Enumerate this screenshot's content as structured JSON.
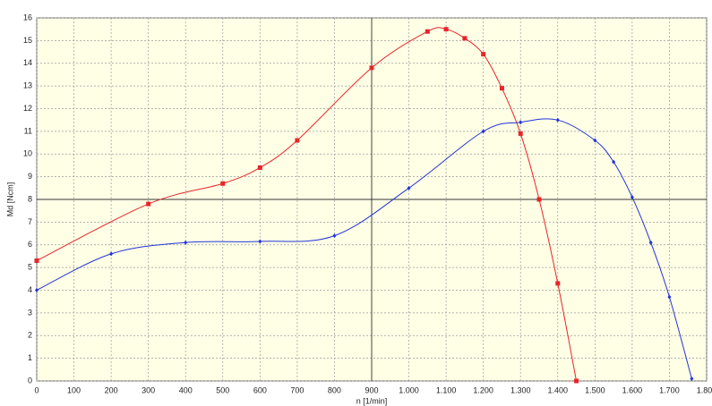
{
  "chart_data": {
    "type": "line",
    "xlabel": "n [1/min]",
    "ylabel": "Md [Ncm]",
    "xlim": [
      0,
      1800
    ],
    "ylim": [
      0,
      16
    ],
    "xticks": [
      0,
      100,
      200,
      300,
      400,
      500,
      600,
      700,
      800,
      900,
      {
        "value": 1000,
        "label": "1.000"
      },
      {
        "value": 1100,
        "label": "1.100"
      },
      {
        "value": 1200,
        "label": "1.200"
      },
      {
        "value": 1300,
        "label": "1.300"
      },
      {
        "value": 1400,
        "label": "1.400"
      },
      {
        "value": 1500,
        "label": "1.500"
      },
      {
        "value": 1600,
        "label": "1.600"
      },
      {
        "value": 1700,
        "label": "1.700"
      },
      {
        "value": 1800,
        "label": "1.800"
      }
    ],
    "yticks": [
      0,
      1,
      2,
      3,
      4,
      5,
      6,
      7,
      8,
      9,
      10,
      11,
      12,
      13,
      14,
      15,
      16
    ],
    "grid": true,
    "background": "#ffffe6",
    "crosshair": {
      "x": 900,
      "y": 8
    },
    "series": [
      {
        "color": "#e8252a",
        "marker": "square",
        "x": [
          0,
          300,
          500,
          600,
          700,
          900,
          1050,
          1100,
          1150,
          1200,
          1250,
          1300,
          1350,
          1400,
          1450
        ],
        "values": [
          5.3,
          7.8,
          8.7,
          9.4,
          10.6,
          13.8,
          15.4,
          15.5,
          15.1,
          14.4,
          12.9,
          10.9,
          8.0,
          4.3,
          0
        ]
      },
      {
        "color": "#2234d8",
        "marker": "diamond",
        "x": [
          0,
          200,
          400,
          600,
          800,
          1000,
          1200,
          1300,
          1400,
          1500,
          1550,
          1600,
          1650,
          1700,
          1760
        ],
        "values": [
          4.0,
          5.6,
          6.1,
          6.15,
          6.4,
          8.5,
          11.0,
          11.4,
          11.5,
          10.6,
          9.65,
          8.1,
          6.1,
          3.7,
          0.1
        ]
      }
    ]
  }
}
